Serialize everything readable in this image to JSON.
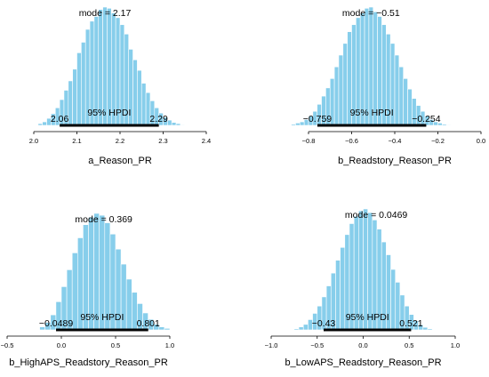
{
  "figure": {
    "title": ""
  },
  "colors": {
    "bar_fill": "#87ceeb",
    "bar_stroke": "#ffffff",
    "hpdi_line": "#000000",
    "axis": "#000000"
  },
  "chart_data": [
    {
      "type": "bar",
      "xlabel": "a_Reason_PR",
      "mode_label": "mode = 2.17",
      "hpdi_label": "95% HPDI",
      "hpdi": [
        2.06,
        2.29
      ],
      "hpdi_low_label": "2.06",
      "hpdi_high_label": "2.29",
      "xlim": [
        2.0,
        2.4
      ],
      "xticks": [
        2.0,
        2.1,
        2.2,
        2.3,
        2.4
      ],
      "xtick_labels": [
        "2.0",
        "2.1",
        "2.2",
        "2.3",
        "2.4"
      ],
      "bin_edges": [
        2.01,
        2.02,
        2.03,
        2.04,
        2.05,
        2.06,
        2.07,
        2.08,
        2.09,
        2.1,
        2.11,
        2.12,
        2.13,
        2.14,
        2.15,
        2.16,
        2.17,
        2.18,
        2.19,
        2.2,
        2.21,
        2.22,
        2.23,
        2.24,
        2.25,
        2.26,
        2.27,
        2.28,
        2.29,
        2.3,
        2.31,
        2.32,
        2.33,
        2.34,
        2.35
      ],
      "density": [
        0.3,
        0.6,
        1.2,
        2.0,
        3.0,
        4.4,
        6.0,
        7.6,
        9.6,
        12.4,
        14.2,
        16.4,
        17.8,
        18.6,
        19.8,
        20.2,
        20.0,
        19.2,
        18.4,
        17.2,
        15.6,
        13.0,
        11.2,
        9.4,
        7.2,
        5.6,
        4.2,
        3.0,
        2.1,
        1.4,
        0.9,
        0.5,
        0.3,
        0.1
      ],
      "density_max": 20.2
    },
    {
      "type": "bar",
      "xlabel": "b_Readstory_Reason_PR",
      "mode_label": "mode = −0.51",
      "hpdi_label": "95% HPDI",
      "hpdi": [
        -0.759,
        -0.254
      ],
      "hpdi_low_label": "−0.759",
      "hpdi_high_label": "−0.254",
      "xlim": [
        -0.8,
        0.0
      ],
      "xticks": [
        -0.8,
        -0.6,
        -0.4,
        -0.2,
        0.0
      ],
      "xtick_labels": [
        "−0.8",
        "−0.6",
        "−0.4",
        "−0.2",
        "0.0"
      ],
      "bin_edges": [
        -0.88,
        -0.86,
        -0.84,
        -0.82,
        -0.8,
        -0.78,
        -0.76,
        -0.74,
        -0.72,
        -0.7,
        -0.68,
        -0.66,
        -0.64,
        -0.62,
        -0.6,
        -0.58,
        -0.56,
        -0.54,
        -0.52,
        -0.5,
        -0.48,
        -0.46,
        -0.44,
        -0.42,
        -0.4,
        -0.38,
        -0.36,
        -0.34,
        -0.32,
        -0.3,
        -0.28,
        -0.26,
        -0.24,
        -0.22,
        -0.2,
        -0.18,
        -0.16,
        -0.14
      ],
      "density": [
        0.1,
        0.2,
        0.3,
        0.5,
        0.8,
        1.2,
        1.8,
        2.5,
        3.2,
        4.0,
        5.0,
        6.0,
        7.0,
        8.0,
        8.6,
        9.2,
        9.6,
        10.0,
        10.1,
        9.7,
        9.3,
        8.6,
        7.8,
        7.0,
        6.0,
        5.0,
        4.0,
        3.1,
        2.3,
        1.7,
        1.2,
        0.8,
        0.5,
        0.3,
        0.2,
        0.1,
        0.05
      ],
      "density_max": 10.1
    },
    {
      "type": "bar",
      "xlabel": "b_HighAPS_Readstory_Reason_PR",
      "mode_label": "mode = 0.369",
      "hpdi_label": "95% HPDI",
      "hpdi": [
        -0.0489,
        0.801
      ],
      "hpdi_low_label": "−0.0489",
      "hpdi_high_label": "0.801",
      "xlim": [
        -0.5,
        1.0
      ],
      "xticks": [
        -0.5,
        0.0,
        0.5,
        1.0
      ],
      "xtick_labels": [
        "−0.5",
        "0.0",
        "0.5",
        "1.0"
      ],
      "bin_edges": [
        -0.2,
        -0.15,
        -0.1,
        -0.05,
        0.0,
        0.05,
        0.1,
        0.15,
        0.2,
        0.25,
        0.3,
        0.35,
        0.4,
        0.45,
        0.5,
        0.55,
        0.6,
        0.65,
        0.7,
        0.75,
        0.8,
        0.85,
        0.9,
        0.95,
        1.0
      ],
      "density": [
        0.08,
        0.2,
        0.4,
        0.75,
        1.15,
        1.6,
        2.05,
        2.45,
        2.8,
        3.0,
        3.1,
        3.05,
        2.85,
        2.55,
        2.15,
        1.75,
        1.35,
        1.0,
        0.7,
        0.45,
        0.28,
        0.15,
        0.08,
        0.04
      ],
      "density_max": 3.1
    },
    {
      "type": "bar",
      "xlabel": "b_LowAPS_Readstory_Reason_PR",
      "mode_label": "mode = 0.0469",
      "hpdi_label": "95% HPDI",
      "hpdi": [
        -0.43,
        0.521
      ],
      "hpdi_low_label": "−0.43",
      "hpdi_high_label": "0.521",
      "xlim": [
        -1.0,
        1.0
      ],
      "xticks": [
        -1.0,
        -0.5,
        0.0,
        0.5,
        1.0
      ],
      "xtick_labels": [
        "−1.0",
        "−0.5",
        "0.0",
        "0.5",
        "1.0"
      ],
      "bin_edges": [
        -0.75,
        -0.7,
        -0.65,
        -0.6,
        -0.55,
        -0.5,
        -0.45,
        -0.4,
        -0.35,
        -0.3,
        -0.25,
        -0.2,
        -0.15,
        -0.1,
        -0.05,
        0.0,
        0.05,
        0.1,
        0.15,
        0.2,
        0.25,
        0.3,
        0.35,
        0.4,
        0.45,
        0.5,
        0.55,
        0.6,
        0.65,
        0.7,
        0.75
      ],
      "density": [
        0.03,
        0.08,
        0.15,
        0.28,
        0.45,
        0.65,
        0.9,
        1.2,
        1.55,
        1.9,
        2.25,
        2.6,
        2.9,
        3.1,
        3.25,
        3.3,
        3.2,
        3.0,
        2.75,
        2.4,
        2.05,
        1.65,
        1.3,
        0.95,
        0.65,
        0.42,
        0.25,
        0.14,
        0.07,
        0.03
      ],
      "density_max": 3.3
    }
  ]
}
